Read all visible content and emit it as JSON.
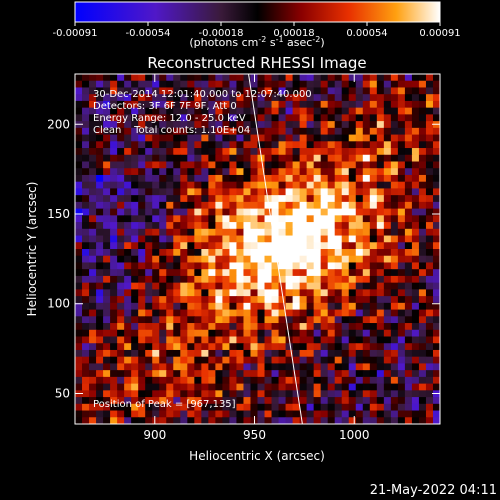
{
  "chart_data": {
    "type": "heatmap",
    "title": "Reconstructed RHESSI Image",
    "xlabel": "Heliocentric X (arcsec)",
    "ylabel": "Heliocentric Y (arcsec)",
    "xlim": [
      860,
      1043
    ],
    "ylim": [
      33,
      228
    ],
    "x_ticks": [
      900,
      950,
      1000
    ],
    "y_ticks": [
      50,
      100,
      150,
      200
    ],
    "colorbar": {
      "ticks": [
        "-0.00091",
        "-0.00054",
        "-0.00018",
        "0.00018",
        "0.00054",
        "0.00091"
      ],
      "range": [
        -0.00091,
        0.00091
      ],
      "label_main": "(photons cm",
      "label_sup1": "-2",
      "label_mid": " s",
      "label_sup2": "-1",
      "label_end": " asec",
      "label_sup3": "-2",
      "label_close": ")"
    },
    "annotations": {
      "line1": "30-Dec-2014 12:01:40.000 to 12:07:40.000",
      "line2": "Detectors: 3F 6F 7F 9F, Att 0",
      "line3": "Energy Range: 12.0 - 25.0 keV",
      "line4": "Clean    Total counts: 1.10E+04",
      "peak": "Position of Peak = [967,135]"
    },
    "peak": [
      967,
      135
    ],
    "limb_line": [
      [
        947,
        228
      ],
      [
        974,
        33
      ]
    ]
  },
  "footer": {
    "timestamp": "21-May-2022 04:11"
  }
}
